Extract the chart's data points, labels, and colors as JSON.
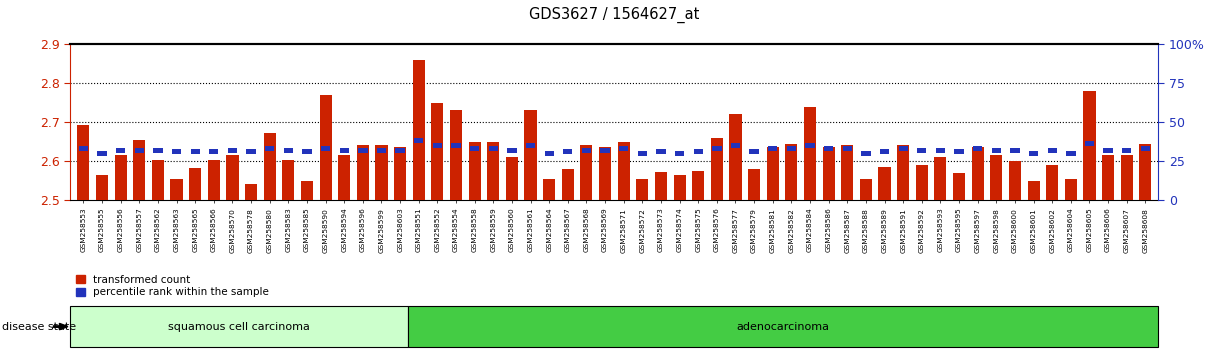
{
  "title": "GDS3627 / 1564627_at",
  "samples": [
    "GSM258553",
    "GSM258555",
    "GSM258556",
    "GSM258557",
    "GSM258562",
    "GSM258563",
    "GSM258565",
    "GSM258566",
    "GSM258570",
    "GSM258578",
    "GSM258580",
    "GSM258583",
    "GSM258585",
    "GSM258590",
    "GSM258594",
    "GSM258596",
    "GSM258599",
    "GSM258603",
    "GSM258551",
    "GSM258552",
    "GSM258554",
    "GSM258558",
    "GSM258559",
    "GSM258560",
    "GSM258561",
    "GSM258564",
    "GSM258567",
    "GSM258568",
    "GSM258569",
    "GSM258571",
    "GSM258572",
    "GSM258573",
    "GSM258574",
    "GSM258575",
    "GSM258576",
    "GSM258577",
    "GSM258579",
    "GSM258581",
    "GSM258582",
    "GSM258584",
    "GSM258586",
    "GSM258587",
    "GSM258588",
    "GSM258589",
    "GSM258591",
    "GSM258592",
    "GSM258593",
    "GSM258595",
    "GSM258597",
    "GSM258598",
    "GSM258600",
    "GSM258601",
    "GSM258602",
    "GSM258604",
    "GSM258605",
    "GSM258606",
    "GSM258607",
    "GSM258608"
  ],
  "red_values": [
    2.692,
    2.565,
    2.615,
    2.655,
    2.603,
    2.553,
    2.583,
    2.603,
    2.615,
    2.54,
    2.672,
    2.603,
    2.55,
    2.77,
    2.615,
    2.64,
    2.64,
    2.635,
    2.86,
    2.75,
    2.73,
    2.65,
    2.65,
    2.61,
    2.73,
    2.555,
    2.58,
    2.64,
    2.635,
    2.65,
    2.555,
    2.572,
    2.565,
    2.575,
    2.66,
    2.72,
    2.58,
    2.635,
    2.645,
    2.74,
    2.635,
    2.64,
    2.555,
    2.585,
    2.64,
    2.59,
    2.61,
    2.57,
    2.635,
    2.615,
    2.6,
    2.55,
    2.59,
    2.555,
    2.78,
    2.615,
    2.615,
    2.645
  ],
  "blue_values": [
    33,
    30,
    32,
    32,
    32,
    31,
    31,
    31,
    32,
    31,
    33,
    32,
    31,
    33,
    32,
    32,
    32,
    32,
    38,
    35,
    35,
    33,
    33,
    32,
    35,
    30,
    31,
    32,
    32,
    33,
    30,
    31,
    30,
    31,
    33,
    35,
    31,
    33,
    33,
    35,
    33,
    33,
    30,
    31,
    33,
    32,
    32,
    31,
    33,
    32,
    32,
    30,
    32,
    30,
    36,
    32,
    32,
    33
  ],
  "squamous_count": 18,
  "ylim_left": [
    2.5,
    2.9
  ],
  "ylim_right": [
    0,
    100
  ],
  "yticks_left": [
    2.5,
    2.6,
    2.7,
    2.8,
    2.9
  ],
  "yticks_right": [
    0,
    25,
    50,
    75,
    100
  ],
  "bar_color_red": "#cc2200",
  "bar_color_blue": "#2233bb",
  "squamous_color": "#ccffcc",
  "adenocarcinoma_color": "#44cc44",
  "background_color": "#ffffff",
  "tick_color_left": "#cc2200",
  "tick_color_right": "#2233bb",
  "figsize": [
    12.13,
    3.54
  ],
  "dpi": 100
}
